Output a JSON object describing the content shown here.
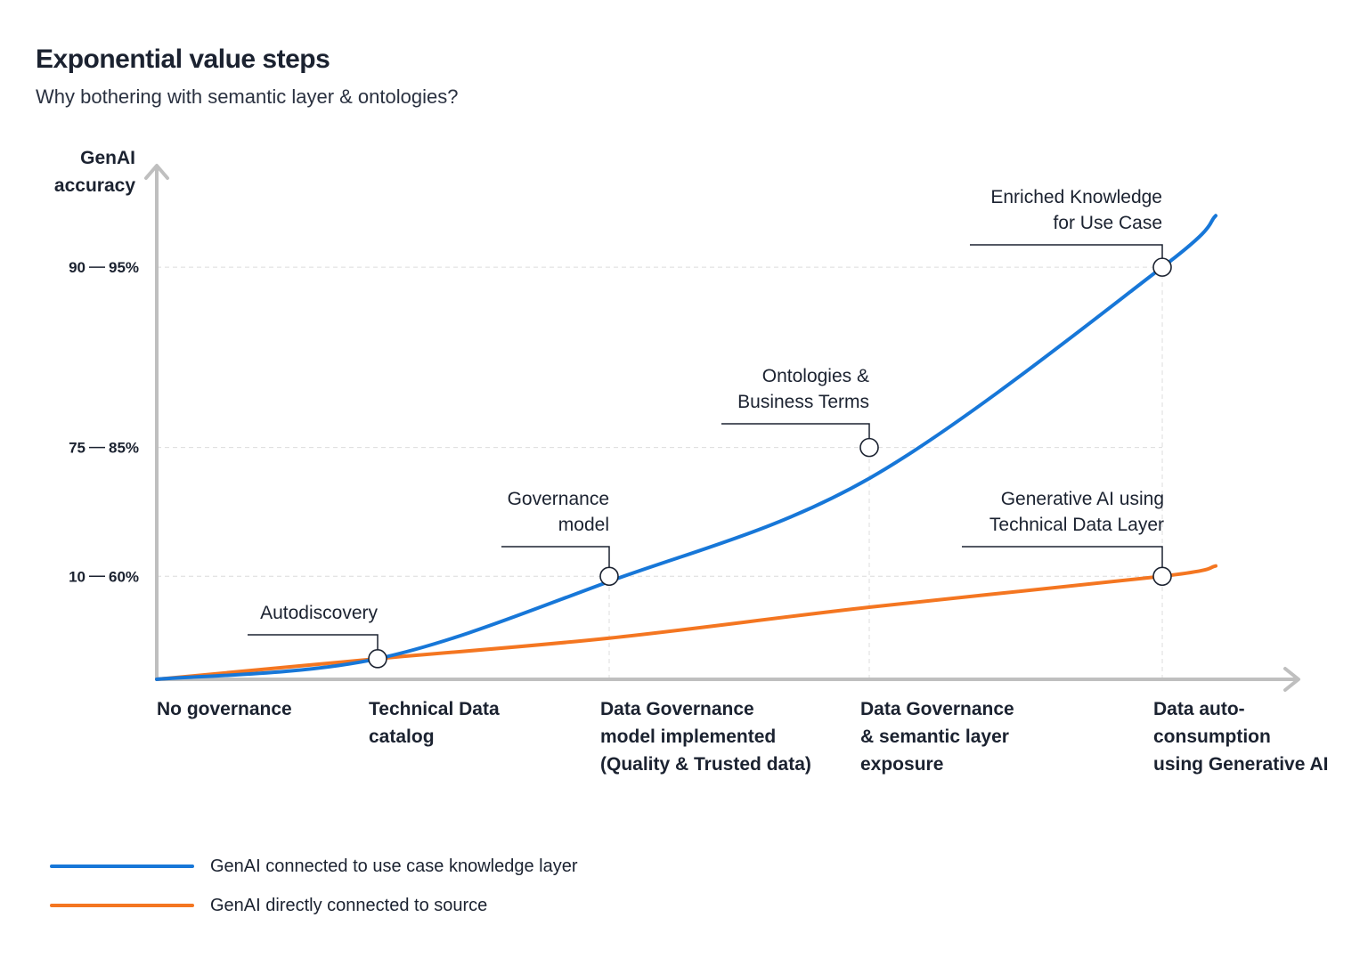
{
  "title": "Exponential value steps",
  "subtitle": "Why bothering with semantic layer & ontologies?",
  "chart_data": {
    "type": "line",
    "ylabel": [
      "GenAI",
      "accuracy"
    ],
    "xlabel": "",
    "grid": true,
    "categories": [
      [
        "No governance"
      ],
      [
        "Technical Data",
        "catalog"
      ],
      [
        "Data Governance",
        "model implemented",
        "(Quality & Trusted data)"
      ],
      [
        "Data Governance",
        "& semantic layer",
        "exposure"
      ],
      [
        "Data auto-",
        "consumption",
        "using Generative AI"
      ]
    ],
    "y_ticks": [
      {
        "low": "10",
        "high": "60%",
        "level": 0.2
      },
      {
        "low": "75",
        "high": "85%",
        "level": 0.45
      },
      {
        "low": "90",
        "high": "95%",
        "level": 0.8
      }
    ],
    "series": [
      {
        "name": "GenAI connected to use case knowledge layer",
        "color": "#1777d8",
        "points": [
          [
            0,
            0
          ],
          [
            1,
            0.04
          ],
          [
            2,
            0.19
          ],
          [
            3,
            0.39
          ],
          [
            4,
            0.8
          ],
          [
            4.2,
            0.9
          ]
        ]
      },
      {
        "name": "GenAI directly connected to source",
        "color": "#f47621",
        "points": [
          [
            0,
            0
          ],
          [
            1,
            0.04
          ],
          [
            2,
            0.08
          ],
          [
            3,
            0.14
          ],
          [
            4,
            0.2
          ],
          [
            4.2,
            0.22
          ]
        ]
      }
    ],
    "annotations": [
      {
        "text": [
          "Autodiscovery"
        ],
        "x": 1,
        "y": 0.04
      },
      {
        "text": [
          "Governance",
          "model"
        ],
        "x": 2,
        "y": 0.2
      },
      {
        "text": [
          "Ontologies &",
          "Business Terms"
        ],
        "x": 3,
        "y": 0.45
      },
      {
        "text": [
          "Enriched Knowledge",
          "for Use Case"
        ],
        "x": 4,
        "y": 0.8
      },
      {
        "text": [
          "Generative AI using",
          "Technical Data Layer"
        ],
        "x": 4,
        "y": 0.2
      }
    ]
  },
  "legend": [
    {
      "label": "GenAI connected to use case knowledge layer",
      "color": "#1777d8"
    },
    {
      "label": "GenAI directly connected to source",
      "color": "#f47621"
    }
  ]
}
